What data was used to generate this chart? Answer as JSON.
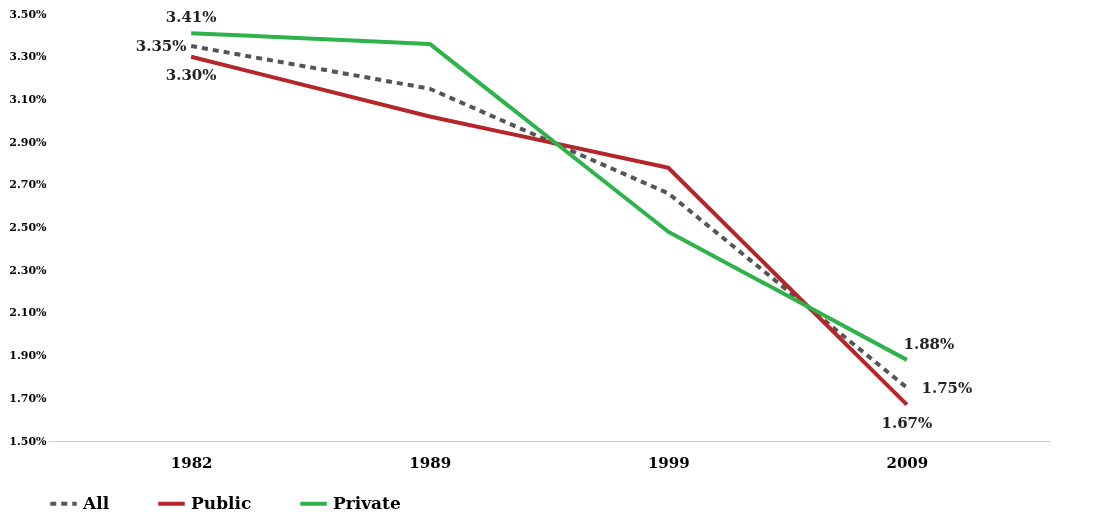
{
  "chart_data": {
    "type": "line",
    "categories": [
      "1982",
      "1989",
      "1999",
      "2009"
    ],
    "series": [
      {
        "name": "All",
        "color": "#555555",
        "line_style": "dashed",
        "values": [
          3.35,
          3.15,
          2.66,
          1.75
        ],
        "value_labels": [
          "3.35%",
          null,
          null,
          "1.75%"
        ]
      },
      {
        "name": "Public",
        "color": "#b5262b",
        "line_style": "solid",
        "values": [
          3.3,
          3.02,
          2.78,
          1.67
        ],
        "value_labels": [
          "3.30%",
          null,
          null,
          "1.67%"
        ]
      },
      {
        "name": "Private",
        "color": "#2db34a",
        "line_style": "solid",
        "values": [
          3.41,
          3.36,
          2.48,
          1.88
        ],
        "value_labels": [
          "3.41%",
          null,
          null,
          "1.88%"
        ]
      }
    ],
    "ylim": [
      1.5,
      3.5
    ],
    "yticks": [
      {
        "value": 1.5,
        "label": "1.50%"
      },
      {
        "value": 1.7,
        "label": "1.70%"
      },
      {
        "value": 1.9,
        "label": "1.90%"
      },
      {
        "value": 2.1,
        "label": "2.10%"
      },
      {
        "value": 2.3,
        "label": "2.30%"
      },
      {
        "value": 2.5,
        "label": "2.50%"
      },
      {
        "value": 2.7,
        "label": "2.70%"
      },
      {
        "value": 2.9,
        "label": "2.90%"
      },
      {
        "value": 3.1,
        "label": "3.10%"
      },
      {
        "value": 3.3,
        "label": "3.30%"
      },
      {
        "value": 3.5,
        "label": "3.50%"
      }
    ],
    "grid": false,
    "legend": "bottom",
    "marker": "none"
  }
}
